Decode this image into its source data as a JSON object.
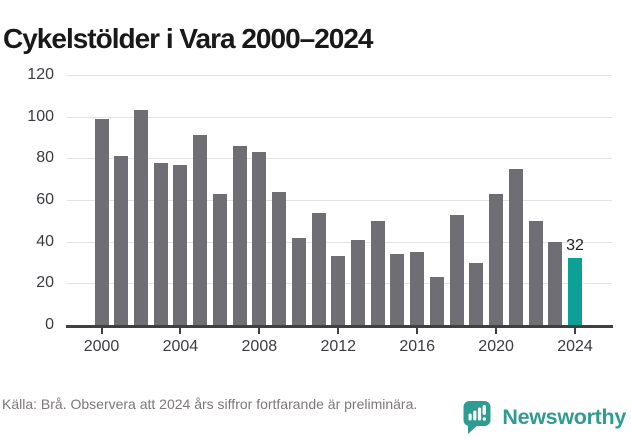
{
  "title": "Cykelstölder i Vara 2000–2024",
  "footer": {
    "source_note": "Källa: Brå. Observera att 2024 års siffror fortfarande är preliminära.",
    "brand": "Newsworthy"
  },
  "colors": {
    "bar": "#6e6e74",
    "highlight": "#0ca096",
    "grid": "#e3e3e6",
    "axis": "#3f3f44",
    "tick_label": "#3b3b40",
    "footer_text": "#7d7878",
    "brand_teal": "#2e9c92"
  },
  "chart_data": {
    "type": "bar",
    "title": "Cykelstölder i Vara 2000–2024",
    "x": [
      2000,
      2001,
      2002,
      2003,
      2004,
      2005,
      2006,
      2007,
      2008,
      2009,
      2010,
      2011,
      2012,
      2013,
      2014,
      2015,
      2016,
      2017,
      2018,
      2019,
      2020,
      2021,
      2022,
      2023,
      2024
    ],
    "values": [
      99,
      81,
      103,
      78,
      77,
      91,
      63,
      86,
      83,
      64,
      42,
      54,
      33,
      41,
      50,
      34,
      35,
      23,
      53,
      30,
      63,
      75,
      50,
      40,
      32
    ],
    "highlight_x": 2024,
    "data_label": {
      "x": 2024,
      "text": "32"
    },
    "xlabel": "",
    "ylabel": "",
    "ylim": [
      0,
      120
    ],
    "yticks": [
      0,
      20,
      40,
      60,
      80,
      100,
      120
    ],
    "xticks": [
      2000,
      2004,
      2008,
      2012,
      2016,
      2020,
      2024
    ],
    "grid": true,
    "legend": null
  }
}
